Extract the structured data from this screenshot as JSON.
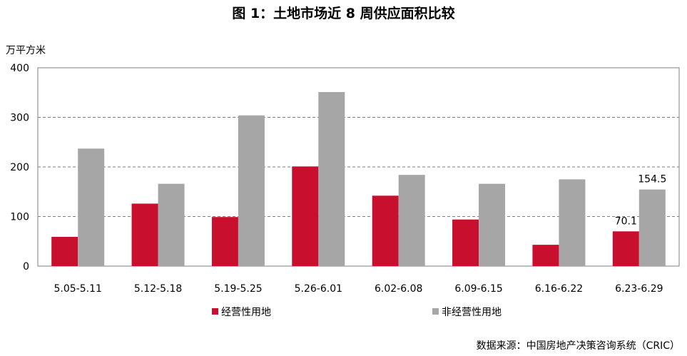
{
  "chart_data": {
    "type": "bar",
    "title": "图 1：土地市场近 8 周供应面积比较",
    "ylabel": "万平方米",
    "ylim": [
      0,
      400
    ],
    "yticks": [
      0,
      100,
      200,
      300,
      400
    ],
    "grid": true,
    "legend_position": "bottom-left",
    "categories": [
      "5.05-5.11",
      "5.12-5.18",
      "5.19-5.25",
      "5.26-6.01",
      "6.02-6.08",
      "6.09-6.15",
      "6.16-6.22",
      "6.23-6.29"
    ],
    "series": [
      {
        "name": "经营性用地",
        "color": "#C8102E",
        "values": [
          59,
          126,
          99,
          201,
          142,
          94,
          43,
          70.1
        ]
      },
      {
        "name": "非经营性用地",
        "color": "#A6A6A6",
        "values": [
          237,
          166,
          304,
          351,
          184,
          166,
          175,
          154.5
        ]
      }
    ],
    "data_labels": [
      {
        "series": 0,
        "index": 7,
        "text": "70.1"
      },
      {
        "series": 1,
        "index": 7,
        "text": "154.5"
      }
    ],
    "source": "数据来源：中国房地产决策咨询系统（CRIC）"
  }
}
